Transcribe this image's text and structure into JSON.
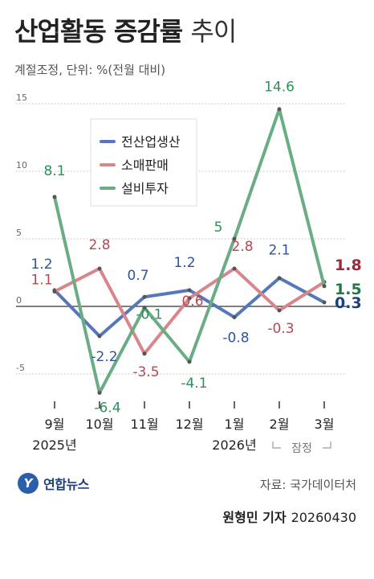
{
  "header": {
    "title_main": "산업활동 증감률",
    "title_suffix": "추이",
    "subtitle": "계절조정, 단위: %(전월 대비)"
  },
  "footer": {
    "logo_text": "연합뉴스",
    "source": "자료: 국가데이터처",
    "reporter": "원형민 기자",
    "date": "20260430"
  },
  "chart_data": {
    "type": "line",
    "categories": [
      "9월",
      "10월",
      "11월",
      "12월",
      "1월",
      "2월",
      "3월"
    ],
    "year_labels": [
      {
        "index": 0,
        "text": "2025년"
      },
      {
        "index": 4,
        "text": "2026년"
      }
    ],
    "provisional_note": "잠정",
    "ylim": [
      -6.4,
      15.5
    ],
    "yticks": [
      15,
      10,
      5,
      0,
      -5
    ],
    "grid": "horizontal-dotted",
    "legend_position": "top-left",
    "series": [
      {
        "name": "전산업생산",
        "color": "#5577bb",
        "label_color": "#2f5597",
        "final_color": "#1f3f7a",
        "values": [
          1.2,
          -2.2,
          0.7,
          1.2,
          -0.8,
          2.1,
          0.3
        ]
      },
      {
        "name": "소매판매",
        "color": "#d9868a",
        "label_color": "#b24a52",
        "final_color": "#a0283a",
        "values": [
          1.1,
          2.8,
          -3.5,
          0.6,
          2.8,
          -0.3,
          1.8
        ]
      },
      {
        "name": "설비투자",
        "color": "#6aac83",
        "label_color": "#2f8f59",
        "final_color": "#1f7a45",
        "values": [
          8.1,
          -6.4,
          -0.1,
          -4.1,
          5.0,
          14.6,
          1.5
        ]
      }
    ]
  }
}
